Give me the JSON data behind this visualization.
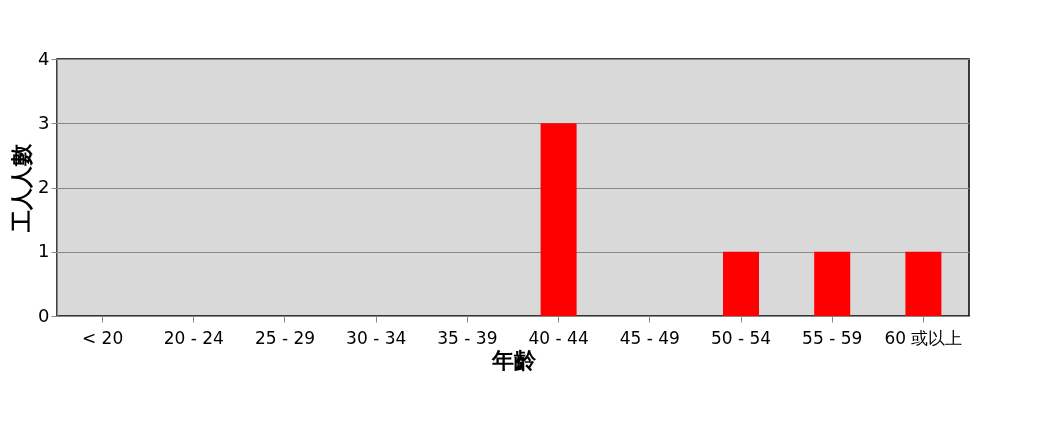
{
  "chart_data": {
    "type": "bar",
    "xlabel": "年齡",
    "ylabel": "工人人數",
    "categories": [
      "< 20",
      "20 - 24",
      "25 - 29",
      "30 - 34",
      "35 - 39",
      "40 - 44",
      "45 - 49",
      "50 - 54",
      "55 - 59",
      "60 或以上"
    ],
    "values": [
      0,
      0,
      0,
      0,
      0,
      3,
      0,
      1,
      1,
      1
    ],
    "color": "#ff0000",
    "ylim": [
      0,
      4
    ],
    "yticks": [
      0,
      1,
      2,
      3,
      4
    ],
    "grid": "y"
  }
}
